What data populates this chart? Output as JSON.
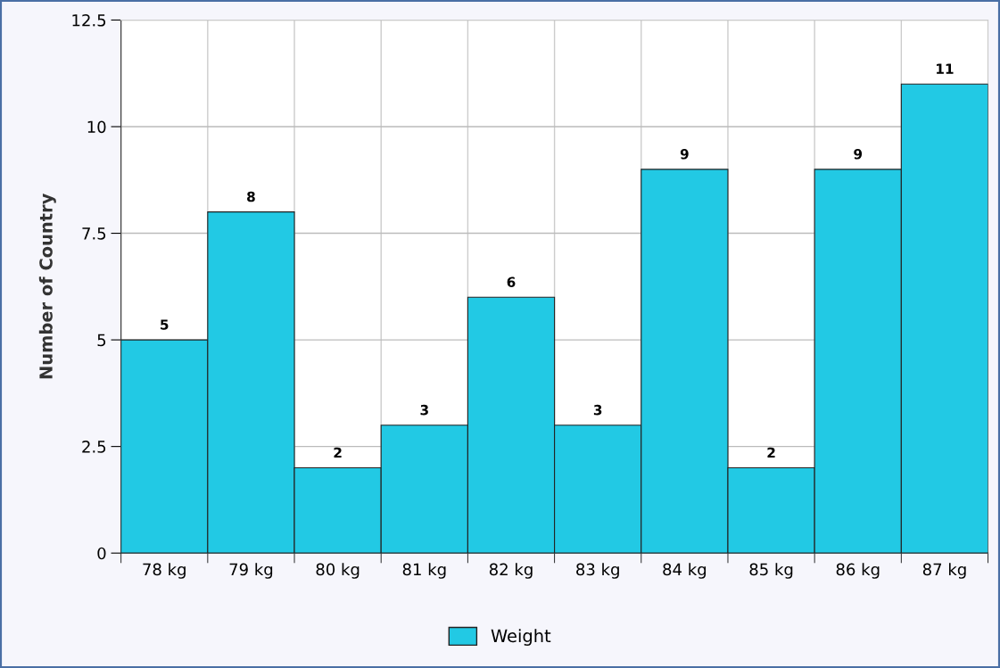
{
  "chart_data": {
    "type": "bar",
    "ylabel": "Number of Country",
    "categories": [
      "78 kg",
      "79 kg",
      "80 kg",
      "81 kg",
      "82 kg",
      "83 kg",
      "84 kg",
      "85 kg",
      "86 kg",
      "87 kg"
    ],
    "series": [
      {
        "name": "Weight",
        "color": "#22c9e4",
        "values": [
          5,
          8,
          2,
          3,
          6,
          3,
          9,
          2,
          9,
          11
        ]
      }
    ],
    "ylim": [
      0,
      12.5
    ],
    "yticks": [
      0,
      2.5,
      5,
      7.5,
      10,
      12.5
    ],
    "data_labels": true,
    "grid": true,
    "legend": "bottom"
  }
}
